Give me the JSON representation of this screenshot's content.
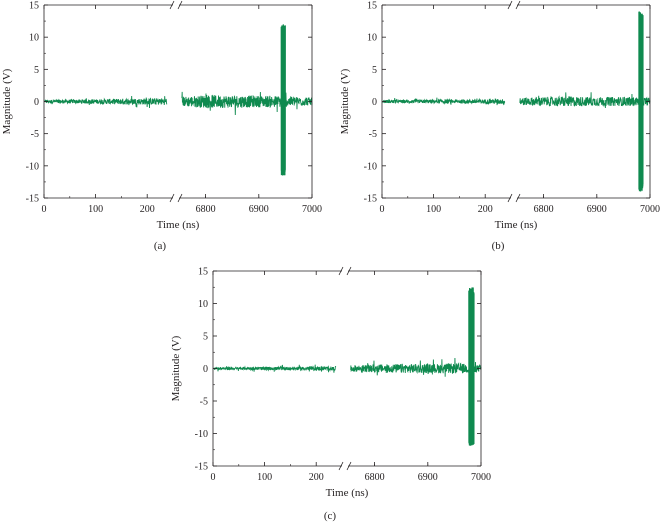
{
  "colors": {
    "signal": "#0f8a4f",
    "axis": "#231f20"
  },
  "chart_data": [
    {
      "type": "line",
      "panel_label": "(a)",
      "xlabel": "Time (ns)",
      "ylabel": "Magnitude (V)",
      "ylim": [
        -15,
        15
      ],
      "yticks": [
        15,
        10,
        5,
        0,
        -5,
        -10,
        -15
      ],
      "x_broken_axis": true,
      "x_segments": [
        {
          "range": [
            0,
            250
          ],
          "ticks": [
            0,
            100,
            200
          ]
        },
        {
          "range": [
            6750,
            7000
          ],
          "ticks": [
            6800,
            6900,
            7000
          ]
        }
      ],
      "series": [
        {
          "segment1_envelope": {
            "x": [
              0,
              50,
              100,
              150,
              200,
              240
            ],
            "amplitude": [
              0.25,
              0.3,
              0.35,
              0.45,
              0.5,
              0.55
            ]
          },
          "segment2_envelope": {
            "x": [
              6760,
              6800,
              6850,
              6900,
              6940,
              7000
            ],
            "amplitude": [
              0.8,
              1.0,
              1.0,
              0.9,
              0.9,
              0.6
            ]
          },
          "pulse": {
            "x_start": 6942,
            "x_end": 6950,
            "peak": 12,
            "trough": -11.5
          }
        }
      ]
    },
    {
      "type": "line",
      "panel_label": "(b)",
      "xlabel": "Time (ns)",
      "ylabel": "Magnitude (V)",
      "ylim": [
        -15,
        15
      ],
      "yticks": [
        15,
        10,
        5,
        0,
        -5,
        -10,
        -15
      ],
      "x_broken_axis": true,
      "x_segments": [
        {
          "range": [
            0,
            250
          ],
          "ticks": [
            0,
            100,
            200
          ]
        },
        {
          "range": [
            6750,
            7000
          ],
          "ticks": [
            6800,
            6900,
            7000
          ]
        }
      ],
      "series": [
        {
          "segment1_envelope": {
            "x": [
              0,
              50,
              100,
              150,
              200,
              240
            ],
            "amplitude": [
              0.25,
              0.25,
              0.3,
              0.3,
              0.35,
              0.4
            ]
          },
          "segment2_envelope": {
            "x": [
              6760,
              6800,
              6850,
              6900,
              6960,
              7000
            ],
            "amplitude": [
              0.6,
              0.7,
              0.8,
              0.7,
              0.7,
              0.6
            ]
          },
          "pulse": {
            "x_start": 6979,
            "x_end": 6987,
            "peak": 14,
            "trough": -14
          }
        }
      ]
    },
    {
      "type": "line",
      "panel_label": "(c)",
      "xlabel": "Time (ns)",
      "ylabel": "Magnitude (V)",
      "ylim": [
        -15,
        15
      ],
      "yticks": [
        15,
        10,
        5,
        0,
        -5,
        -10,
        -15
      ],
      "x_broken_axis": true,
      "x_segments": [
        {
          "range": [
            0,
            250
          ],
          "ticks": [
            0,
            100,
            200
          ]
        },
        {
          "range": [
            6750,
            7000
          ],
          "ticks": [
            6800,
            6900,
            7000
          ]
        }
      ],
      "series": [
        {
          "segment1_envelope": {
            "x": [
              0,
              50,
              100,
              150,
              200,
              240
            ],
            "amplitude": [
              0.2,
              0.2,
              0.25,
              0.25,
              0.3,
              0.3
            ]
          },
          "segment2_envelope": {
            "x": [
              6760,
              6800,
              6850,
              6900,
              6960,
              7000
            ],
            "amplitude": [
              0.5,
              0.6,
              0.7,
              0.7,
              0.8,
              0.5
            ]
          },
          "pulse": {
            "x_start": 6977,
            "x_end": 6987,
            "peak": 12.5,
            "trough": -12
          }
        }
      ]
    }
  ]
}
